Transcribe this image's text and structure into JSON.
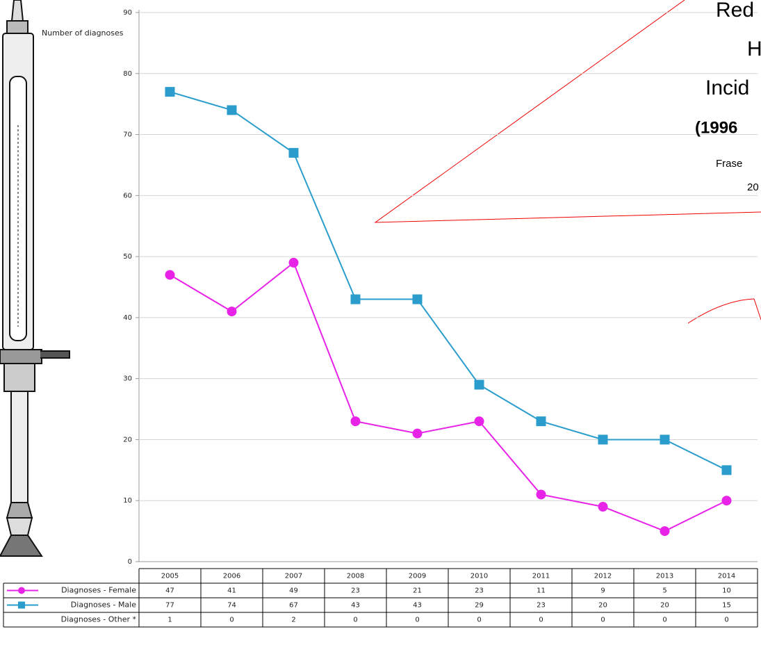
{
  "chart_data": {
    "type": "line",
    "y_label": "Number of diagnoses",
    "categories": [
      "2005",
      "2006",
      "2007",
      "2008",
      "2009",
      "2010",
      "2011",
      "2012",
      "2013",
      "2014"
    ],
    "series": [
      {
        "name": "Diagnoses - Female",
        "color": "#e823e8",
        "marker": "circle",
        "values": [
          47,
          41,
          49,
          23,
          21,
          23,
          11,
          9,
          5,
          10
        ]
      },
      {
        "name": "Diagnoses - Male",
        "color": "#2a9dcc",
        "marker": "square",
        "values": [
          77,
          74,
          67,
          43,
          43,
          29,
          23,
          20,
          20,
          15
        ]
      },
      {
        "name": "Diagnoses - Other *",
        "values": [
          1,
          0,
          2,
          0,
          0,
          0,
          0,
          0,
          0,
          0
        ]
      }
    ],
    "ylim": [
      0,
      90
    ],
    "yticks": [
      0,
      10,
      20,
      30,
      40,
      50,
      60,
      70,
      80,
      90
    ],
    "grid": true,
    "annotations": [
      "Red",
      "H",
      "Incid",
      "(1996",
      "Frase",
      "20"
    ]
  }
}
